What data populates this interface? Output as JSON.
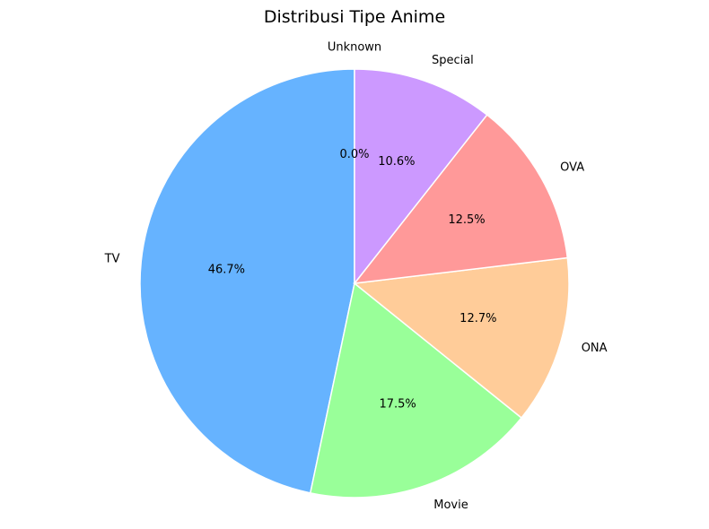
{
  "chart_data": {
    "type": "pie",
    "title": "Distribusi Tipe Anime",
    "start_angle_deg": 90,
    "direction": "counterclockwise",
    "slices": [
      {
        "label": "TV",
        "value": 46.7,
        "pct_text": "46.7%",
        "color": "#66b3ff"
      },
      {
        "label": "Movie",
        "value": 17.5,
        "pct_text": "17.5%",
        "color": "#99ff99"
      },
      {
        "label": "ONA",
        "value": 12.7,
        "pct_text": "12.7%",
        "color": "#ffcc99"
      },
      {
        "label": "OVA",
        "value": 12.5,
        "pct_text": "12.5%",
        "color": "#ff9999"
      },
      {
        "label": "Special",
        "value": 10.6,
        "pct_text": "10.6%",
        "color": "#cc99ff"
      },
      {
        "label": "Unknown",
        "value": 0.0,
        "pct_text": "0.0%",
        "color": "#c2c2f0"
      }
    ]
  }
}
